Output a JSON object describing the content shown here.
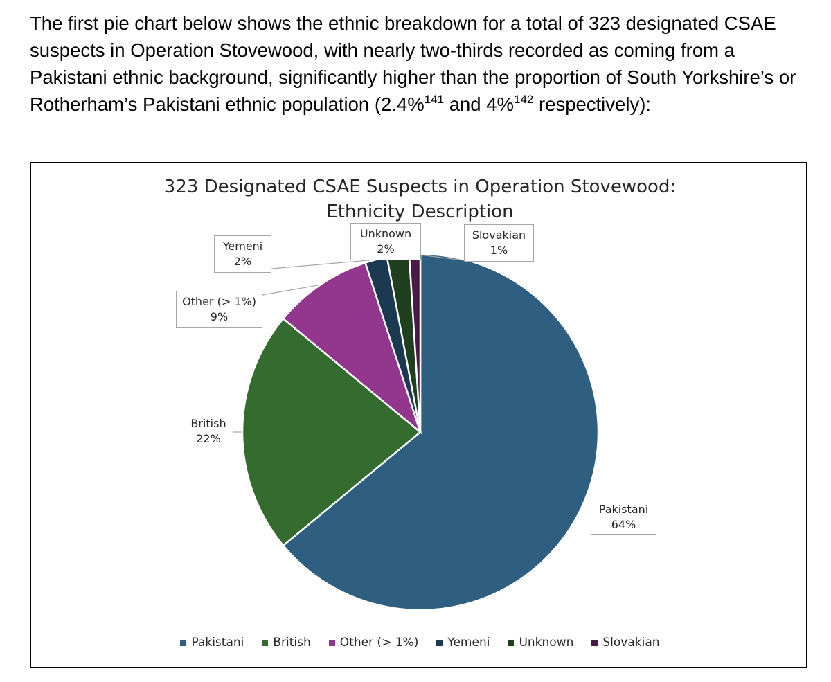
{
  "intro": {
    "part1": "The first pie chart below shows the ethnic breakdown for a total of 323 designated CSAE suspects in Operation Stovewood, with nearly two-thirds recorded as coming from a Pakistani ethnic background, significantly higher than the proportion of South Yorkshire’s or Rotherham’s Pakistani ethnic population (2.4%",
    "ref1": "141",
    "part2": " and 4%",
    "ref2": "142",
    "part3": " respectively):"
  },
  "chart_data": {
    "type": "pie",
    "title_line1": "323 Designated CSAE Suspects in Operation Stovewood:",
    "title_line2": "Ethnicity Description",
    "legend_position": "bottom",
    "slices": [
      {
        "name": "Pakistani",
        "value": 64,
        "label": "64%",
        "color": "#2e5f80"
      },
      {
        "name": "British",
        "value": 22,
        "label": "22%",
        "color": "#346b2e"
      },
      {
        "name": "Other (> 1%)",
        "value": 9,
        "label": "9%",
        "color": "#92368e"
      },
      {
        "name": "Yemeni",
        "value": 2,
        "label": "2%",
        "color": "#1b3a52"
      },
      {
        "name": "Unknown",
        "value": 2,
        "label": "2%",
        "color": "#1f3f1e"
      },
      {
        "name": "Slovakian",
        "value": 1,
        "label": "1%",
        "color": "#4a1a47"
      }
    ]
  }
}
